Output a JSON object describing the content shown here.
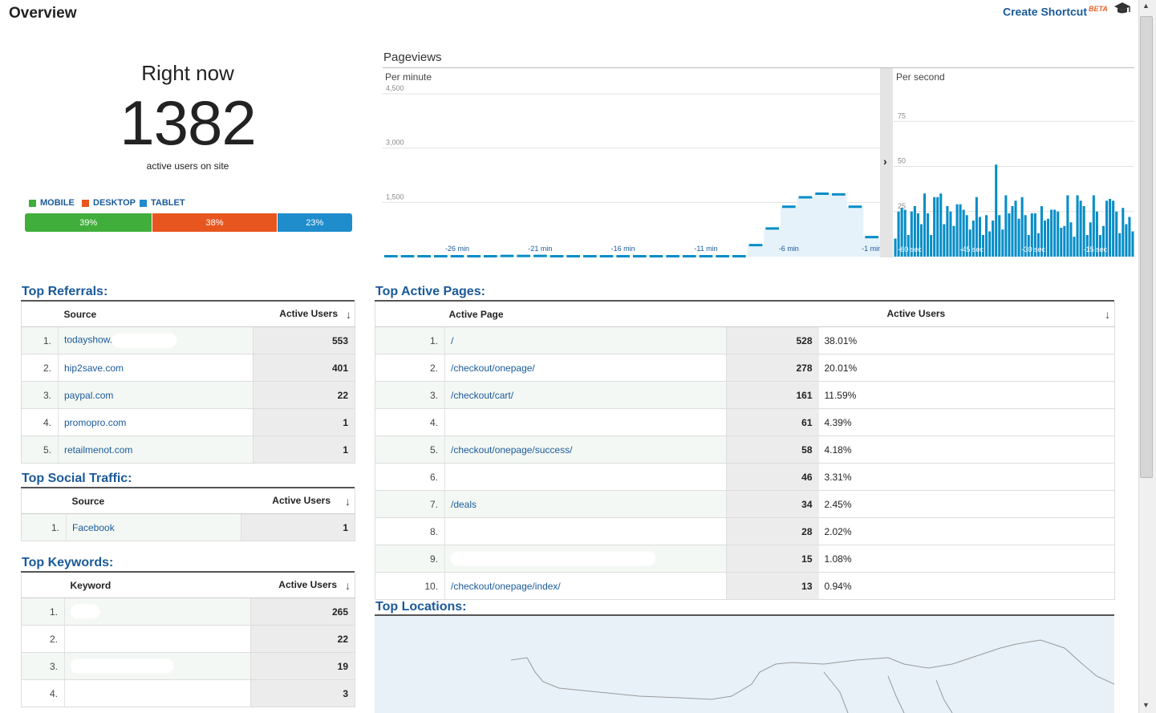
{
  "header": {
    "title": "Overview",
    "create_shortcut": "Create Shortcut",
    "beta": "BETA"
  },
  "right_now": {
    "label": "Right now",
    "count": "1382",
    "sub": "active users on site",
    "legend": [
      {
        "label": "MOBILE",
        "color": "#3fae3a"
      },
      {
        "label": "DESKTOP",
        "color": "#e8561f"
      },
      {
        "label": "TABLET",
        "color": "#1f8ccc"
      }
    ],
    "segments": [
      {
        "label": "39%",
        "pct": 39,
        "color": "#3fae3a"
      },
      {
        "label": "38%",
        "pct": 38,
        "color": "#e8561f"
      },
      {
        "label": "23%",
        "pct": 23,
        "color": "#1f8ccc"
      }
    ]
  },
  "pageviews": {
    "title": "Pageviews",
    "per_minute_label": "Per minute",
    "per_second_label": "Per second",
    "expand_glyph": "›"
  },
  "chart_data": [
    {
      "type": "area",
      "title": "Per minute",
      "ylim": [
        0,
        4500
      ],
      "y_ticks": [
        "4,500",
        "3,000",
        "1,500"
      ],
      "x_ticks": [
        "-26 min",
        "-21 min",
        "-16 min",
        "-11 min",
        "-6 min",
        "-1 min"
      ],
      "x": [
        -30,
        -29,
        -28,
        -27,
        -26,
        -25,
        -24,
        -23,
        -22,
        -21,
        -20,
        -19,
        -18,
        -17,
        -16,
        -15,
        -14,
        -13,
        -12,
        -11,
        -10,
        -9,
        -8,
        -7,
        -6,
        -5,
        -4,
        -3,
        -2,
        -1
      ],
      "values": [
        10,
        10,
        10,
        10,
        10,
        10,
        10,
        20,
        20,
        20,
        10,
        10,
        10,
        10,
        10,
        10,
        10,
        10,
        10,
        10,
        10,
        10,
        320,
        780,
        1380,
        1640,
        1740,
        1720,
        1380,
        540
      ]
    },
    {
      "type": "bar",
      "title": "Per second",
      "ylim": [
        0,
        100
      ],
      "y_ticks": [
        "75",
        "50",
        "25"
      ],
      "x_ticks": [
        "-60 sec",
        "-45 sec",
        "-30 sec",
        "-15 sec"
      ],
      "values": [
        10,
        25,
        27,
        26,
        12,
        25,
        28,
        24,
        18,
        35,
        24,
        12,
        33,
        33,
        35,
        18,
        28,
        25,
        17,
        29,
        29,
        26,
        23,
        15,
        20,
        33,
        22,
        12,
        23,
        14,
        20,
        51,
        23,
        15,
        34,
        24,
        28,
        31,
        21,
        33,
        23,
        12,
        24,
        24,
        13,
        28,
        20,
        21,
        26,
        26,
        25,
        16,
        17,
        34,
        19,
        11,
        34,
        31,
        28,
        12,
        19,
        34,
        25,
        12,
        17,
        31,
        32,
        31,
        25,
        13,
        27,
        18,
        22,
        14
      ]
    }
  ],
  "referrals": {
    "title": "Top Referrals:",
    "col_source": "Source",
    "col_users": "Active Users",
    "rows": [
      {
        "n": "1.",
        "label": "todayshow.",
        "value": "553"
      },
      {
        "n": "2.",
        "label": "hip2save.com",
        "value": "401"
      },
      {
        "n": "3.",
        "label": "paypal.com",
        "value": "22"
      },
      {
        "n": "4.",
        "label": "promopro.com",
        "value": "1"
      },
      {
        "n": "5.",
        "label": "retailmenot.com",
        "value": "1"
      }
    ]
  },
  "social": {
    "title": "Top Social Traffic:",
    "col_source": "Source",
    "col_users": "Active Users",
    "rows": [
      {
        "n": "1.",
        "label": "Facebook",
        "value": "1"
      }
    ]
  },
  "keywords": {
    "title": "Top Keywords:",
    "col_keyword": "Keyword",
    "col_users": "Active Users",
    "rows": [
      {
        "n": "1.",
        "label": "",
        "value": "265"
      },
      {
        "n": "2.",
        "label": "",
        "value": "22"
      },
      {
        "n": "3.",
        "label": "",
        "value": "19"
      },
      {
        "n": "4.",
        "label": "",
        "value": "3"
      }
    ]
  },
  "pages": {
    "title": "Top Active Pages:",
    "col_page": "Active Page",
    "col_users": "Active Users",
    "rows": [
      {
        "n": "1.",
        "label": "/",
        "value": "528",
        "pct": "38.01%"
      },
      {
        "n": "2.",
        "label": "/checkout/onepage/",
        "value": "278",
        "pct": "20.01%"
      },
      {
        "n": "3.",
        "label": "/checkout/cart/",
        "value": "161",
        "pct": "11.59%"
      },
      {
        "n": "4.",
        "label": "",
        "value": "61",
        "pct": "4.39%"
      },
      {
        "n": "5.",
        "label": "/checkout/onepage/success/",
        "value": "58",
        "pct": "4.18%"
      },
      {
        "n": "6.",
        "label": "",
        "value": "46",
        "pct": "3.31%"
      },
      {
        "n": "7.",
        "label": "/deals",
        "value": "34",
        "pct": "2.45%"
      },
      {
        "n": "8.",
        "label": "",
        "value": "28",
        "pct": "2.02%"
      },
      {
        "n": "9.",
        "label": "",
        "value": "15",
        "pct": "1.08%"
      },
      {
        "n": "10.",
        "label": "/checkout/onepage/index/",
        "value": "13",
        "pct": "0.94%"
      }
    ]
  },
  "locations": {
    "title": "Top Locations:"
  }
}
